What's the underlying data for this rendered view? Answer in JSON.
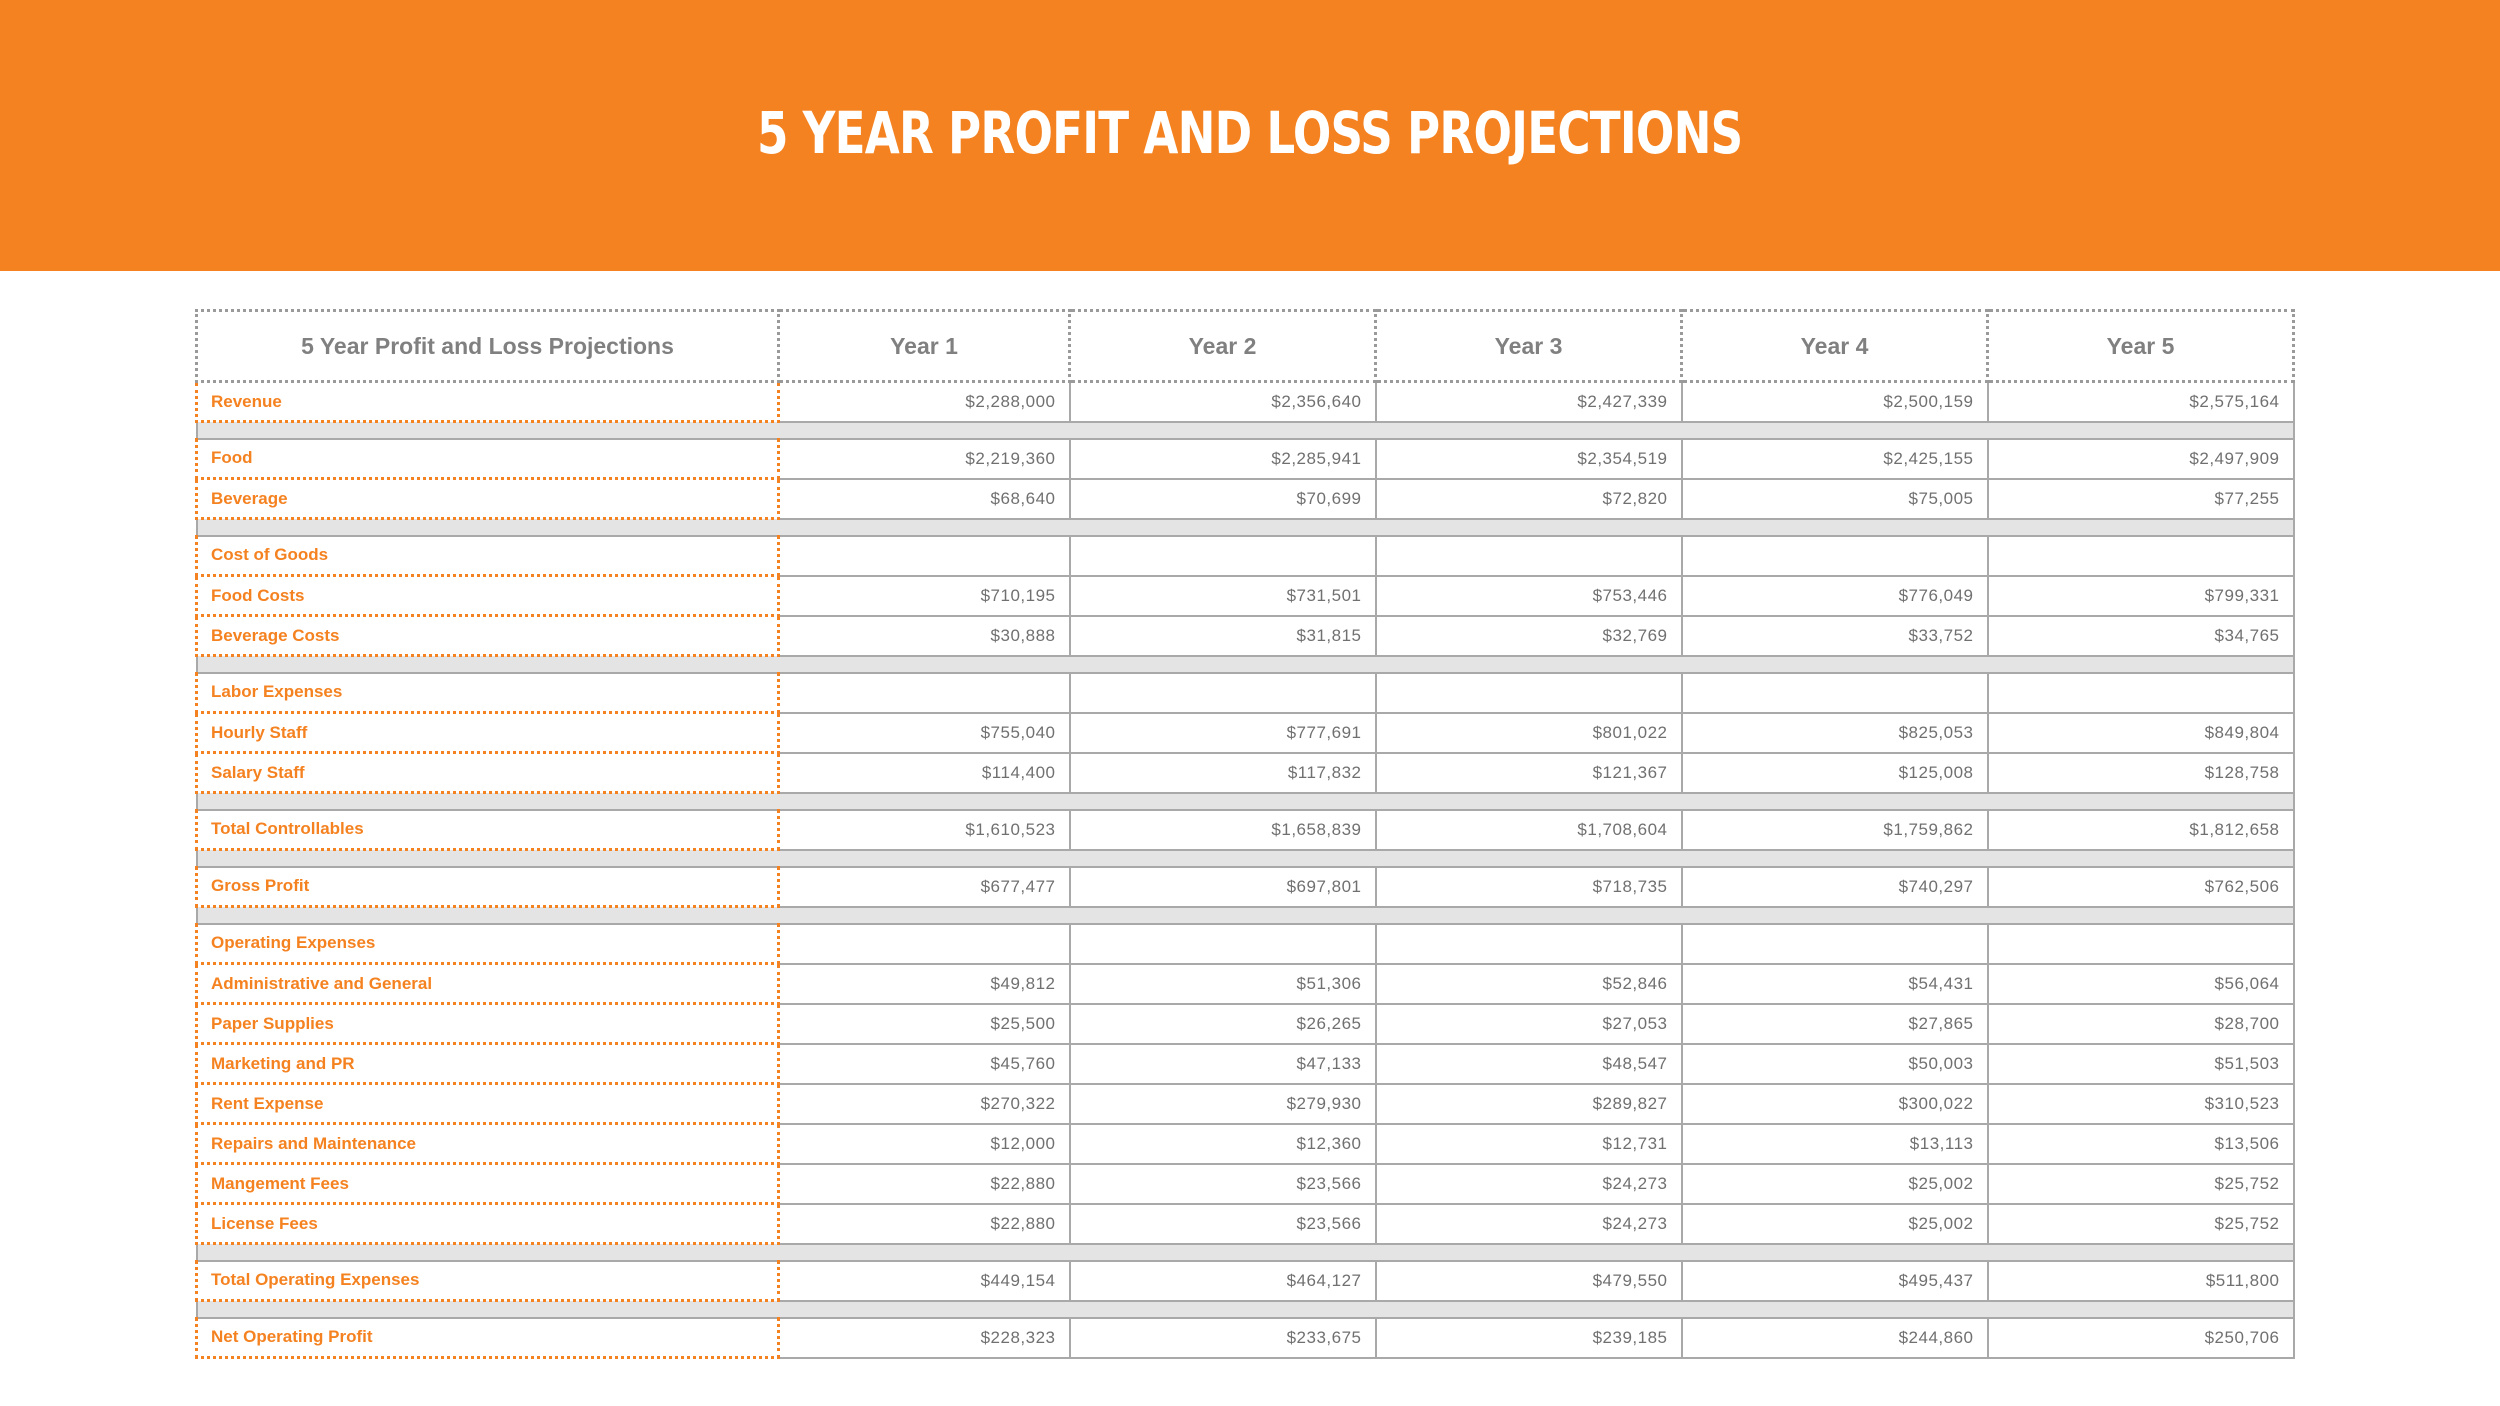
{
  "title": "5 YEAR PROFIT AND LOSS PROJECTIONS",
  "colors": {
    "accent": "#f58220",
    "text_gray": "#707070",
    "spacer_gray": "#e4e4e4"
  },
  "table": {
    "headers": [
      "5 Year Profit and Loss Projections",
      "Year 1",
      "Year 2",
      "Year 3",
      "Year 4",
      "Year 5"
    ],
    "rows": [
      {
        "type": "data",
        "label": "Revenue",
        "values": [
          "$2,288,000",
          "$2,356,640",
          "$2,427,339",
          "$2,500,159",
          "$2,575,164"
        ]
      },
      {
        "type": "spacer"
      },
      {
        "type": "data",
        "label": "Food",
        "values": [
          "$2,219,360",
          "$2,285,941",
          "$2,354,519",
          "$2,425,155",
          "$2,497,909"
        ]
      },
      {
        "type": "data",
        "label": "Beverage",
        "values": [
          "$68,640",
          "$70,699",
          "$72,820",
          "$75,005",
          "$77,255"
        ]
      },
      {
        "type": "spacer"
      },
      {
        "type": "section",
        "label": "Cost of Goods"
      },
      {
        "type": "data",
        "label": "Food Costs",
        "values": [
          "$710,195",
          "$731,501",
          "$753,446",
          "$776,049",
          "$799,331"
        ]
      },
      {
        "type": "data",
        "label": "Beverage Costs",
        "values": [
          "$30,888",
          "$31,815",
          "$32,769",
          "$33,752",
          "$34,765"
        ]
      },
      {
        "type": "spacer"
      },
      {
        "type": "section",
        "label": "Labor Expenses"
      },
      {
        "type": "data",
        "label": "Hourly Staff",
        "values": [
          "$755,040",
          "$777,691",
          "$801,022",
          "$825,053",
          "$849,804"
        ]
      },
      {
        "type": "data",
        "label": "Salary Staff",
        "values": [
          "$114,400",
          "$117,832",
          "$121,367",
          "$125,008",
          "$128,758"
        ]
      },
      {
        "type": "spacer"
      },
      {
        "type": "data",
        "label": "Total Controllables",
        "values": [
          "$1,610,523",
          "$1,658,839",
          "$1,708,604",
          "$1,759,862",
          "$1,812,658"
        ]
      },
      {
        "type": "spacer"
      },
      {
        "type": "data",
        "label": "Gross Profit",
        "values": [
          "$677,477",
          "$697,801",
          "$718,735",
          "$740,297",
          "$762,506"
        ]
      },
      {
        "type": "spacer"
      },
      {
        "type": "section",
        "label": "Operating Expenses"
      },
      {
        "type": "data",
        "label": "Administrative and General",
        "values": [
          "$49,812",
          "$51,306",
          "$52,846",
          "$54,431",
          "$56,064"
        ]
      },
      {
        "type": "data",
        "label": "Paper Supplies",
        "values": [
          "$25,500",
          "$26,265",
          "$27,053",
          "$27,865",
          "$28,700"
        ]
      },
      {
        "type": "data",
        "label": "Marketing and PR",
        "values": [
          "$45,760",
          "$47,133",
          "$48,547",
          "$50,003",
          "$51,503"
        ]
      },
      {
        "type": "data",
        "label": "Rent Expense",
        "values": [
          "$270,322",
          "$279,930",
          "$289,827",
          "$300,022",
          "$310,523"
        ]
      },
      {
        "type": "data",
        "label": "Repairs and Maintenance",
        "values": [
          "$12,000",
          "$12,360",
          "$12,731",
          "$13,113",
          "$13,506"
        ]
      },
      {
        "type": "data",
        "label": "Mangement Fees",
        "values": [
          "$22,880",
          "$23,566",
          "$24,273",
          "$25,002",
          "$25,752"
        ]
      },
      {
        "type": "data",
        "label": "License Fees",
        "values": [
          "$22,880",
          "$23,566",
          "$24,273",
          "$25,002",
          "$25,752"
        ]
      },
      {
        "type": "spacer"
      },
      {
        "type": "data",
        "label": "Total Operating Expenses",
        "values": [
          "$449,154",
          "$464,127",
          "$479,550",
          "$495,437",
          "$511,800"
        ]
      },
      {
        "type": "spacer"
      },
      {
        "type": "data",
        "label": "Net Operating Profit",
        "values": [
          "$228,323",
          "$233,675",
          "$239,185",
          "$244,860",
          "$250,706"
        ]
      }
    ]
  }
}
